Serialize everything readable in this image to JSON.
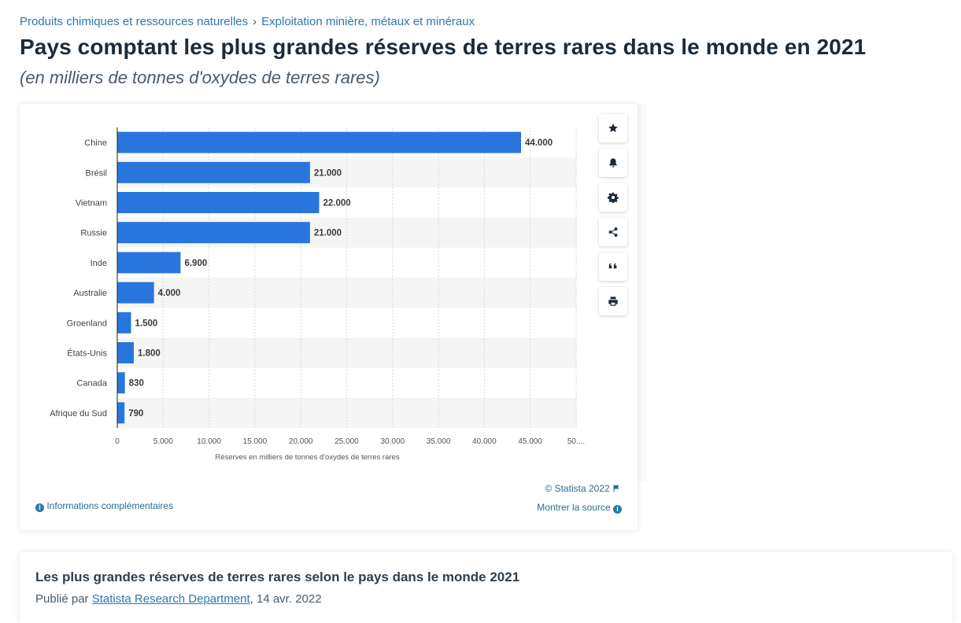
{
  "breadcrumb": {
    "item1": "Produits chimiques et ressources naturelles",
    "separator": "›",
    "item2": "Exploitation minière, métaux et minéraux"
  },
  "page_title": "Pays comptant les plus grandes réserves de terres rares dans le monde en 2021",
  "subtitle": "(en milliers de tonnes d'oxydes de terres rares)",
  "tools": [
    "star-icon",
    "bell-icon",
    "gear-icon",
    "share-icon",
    "quote-icon",
    "print-icon"
  ],
  "chart_data": {
    "type": "bar",
    "orientation": "horizontal",
    "categories": [
      "Chine",
      "Brésil",
      "Vietnam",
      "Russie",
      "Inde",
      "Australie",
      "Groenland",
      "États-Unis",
      "Canada",
      "Afrique du Sud"
    ],
    "values": [
      44000,
      21000,
      22000,
      21000,
      6900,
      4000,
      1500,
      1800,
      830,
      790
    ],
    "value_labels": [
      "44.000",
      "21.000",
      "22.000",
      "21.000",
      "6.900",
      "4.000",
      "1.500",
      "1.800",
      "830",
      "790"
    ],
    "x_ticks": [
      0,
      5000,
      10000,
      15000,
      20000,
      25000,
      30000,
      35000,
      40000,
      45000,
      50000
    ],
    "x_tick_labels": [
      "0",
      "5.000",
      "10.000",
      "15.000",
      "20.000",
      "25.000",
      "30.000",
      "35.000",
      "40.000",
      "45.000",
      "50...."
    ],
    "xlim": [
      0,
      50000
    ],
    "xlabel": "Réserves en milliers de tonnes d'oxydes de terres rares",
    "ylabel": "",
    "bar_color": "#2876dd",
    "stripe_color": "#f5f5f5",
    "grid": true
  },
  "credit": "© Statista 2022",
  "source_link": "Montrer la source",
  "info_link": "Informations complémentaires",
  "panel": {
    "heading": "Les plus grandes réserves de terres rares selon le pays dans le monde 2021",
    "published_prefix": "Publié par",
    "author": "Statista Research Department",
    "date": ", 14 avr. 2022"
  }
}
